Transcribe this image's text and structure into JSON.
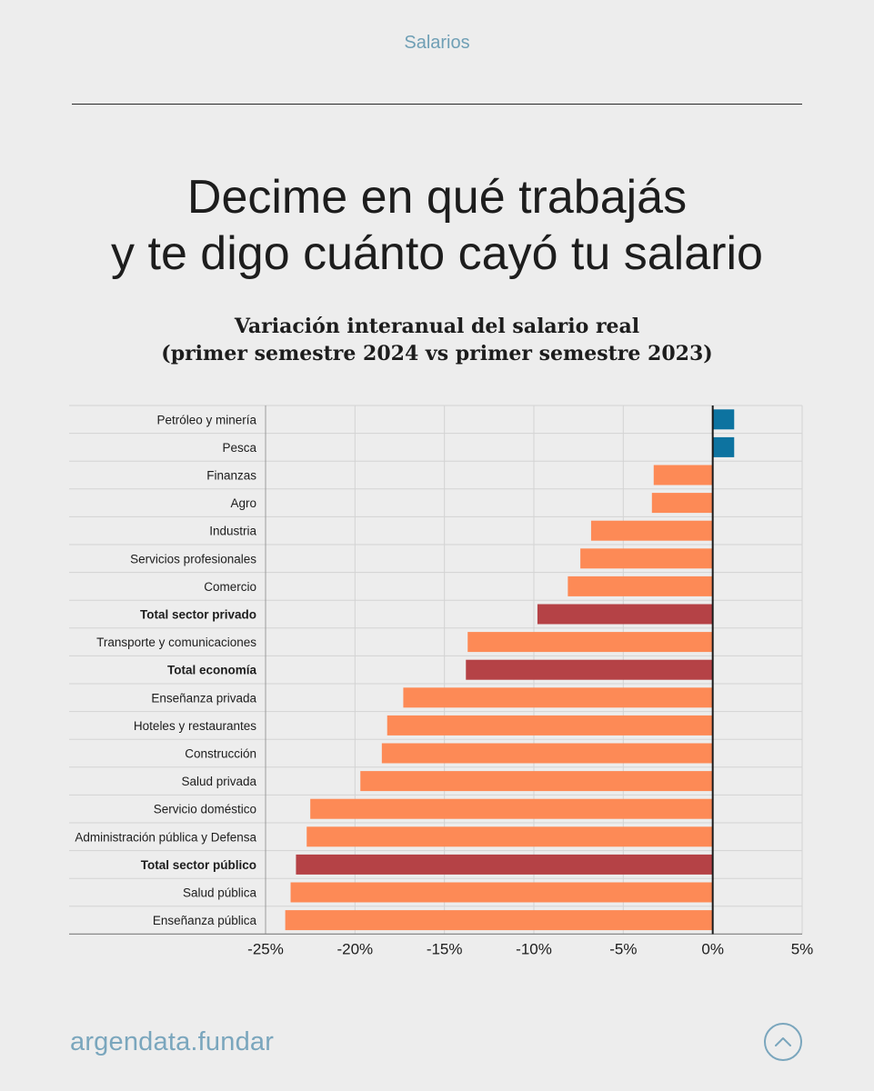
{
  "header": {
    "section": "Salarios"
  },
  "headline": {
    "line1": "Decime en qué trabajás",
    "line2": "y te digo cuánto cayó tu salario"
  },
  "chart_data": {
    "type": "bar",
    "orientation": "horizontal",
    "title": "Variación interanual del salario real",
    "subtitle": "(primer semestre 2024 vs primer semestre 2023)",
    "xlabel": "",
    "ylabel": "",
    "xlim": [
      -25,
      5
    ],
    "xticks": [
      -25,
      -20,
      -15,
      -10,
      -5,
      0,
      5
    ],
    "xtick_labels": [
      "-25%",
      "-20%",
      "-15%",
      "-10%",
      "-5%",
      "0%",
      "5%"
    ],
    "grid": true,
    "categories": [
      "Petróleo y minería",
      "Pesca",
      "Finanzas",
      "Agro",
      "Industria",
      "Servicios profesionales",
      "Comercio",
      "Total sector privado",
      "Transporte y comunicaciones",
      "Total economía",
      "Enseñanza privada",
      "Hoteles y restaurantes",
      "Construcción",
      "Salud privada",
      "Servicio doméstico",
      "Administración pública y Defensa",
      "Total sector público",
      "Salud pública",
      "Enseñanza pública"
    ],
    "values": [
      1.2,
      1.2,
      -3.3,
      -3.4,
      -6.8,
      -7.4,
      -8.1,
      -9.8,
      -13.7,
      -13.8,
      -17.3,
      -18.2,
      -18.5,
      -19.7,
      -22.5,
      -22.7,
      -23.3,
      -23.6,
      -23.9
    ],
    "highlight": [
      "Total sector privado",
      "Total economía",
      "Total sector público"
    ],
    "colors": {
      "positive": "#0d73a0",
      "negative": "#fd8a56",
      "total": "#b54246",
      "grid": "#d3d3d3",
      "axis": "#1a1a1a"
    }
  },
  "footer": {
    "brand": "argendata.fundar",
    "scroll_top_icon": "chevron-up-icon"
  }
}
